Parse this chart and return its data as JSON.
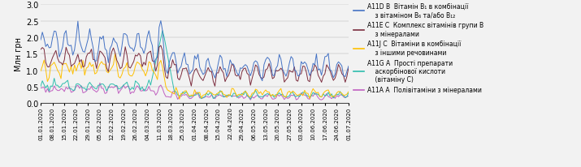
{
  "title": "",
  "ylabel": "Млн грн",
  "ylim": [
    0.0,
    3.0
  ],
  "yticks": [
    0.0,
    0.5,
    1.0,
    1.5,
    2.0,
    2.5,
    3.0
  ],
  "date_start": "2020-01-01",
  "date_end": "2020-07-01",
  "colors": {
    "A11DB": "#4472C4",
    "A11EC": "#7B2C3E",
    "A11JC": "#FFC000",
    "A11GA": "#2DBDAD",
    "A11AA": "#C060C0"
  },
  "linewidth": 0.7,
  "legend": [
    {
      "label": "A11D B  Вітамін B₁ в комбінації\n    з вітаміном B₆ та/або B₁₂",
      "color": "#4472C4"
    },
    {
      "label": "A11E C  Комплекс вітамінів групи B\n    з мінералами",
      "color": "#7B2C3E"
    },
    {
      "label": "A11J C  Вітаміни в комбінації\n    з іншими речовинами",
      "color": "#FFC000"
    },
    {
      "label": "A11G A  Прості препарати\n    аскорбінової кислоти\n    (вітаміну C)",
      "color": "#2DBDAD"
    },
    {
      "label": "A11A A  Полівітаміни з мінералами",
      "color": "#C060C0"
    }
  ],
  "figsize": [
    7.15,
    2.07
  ],
  "dpi": 100,
  "bg_color": "#F2F2F2"
}
